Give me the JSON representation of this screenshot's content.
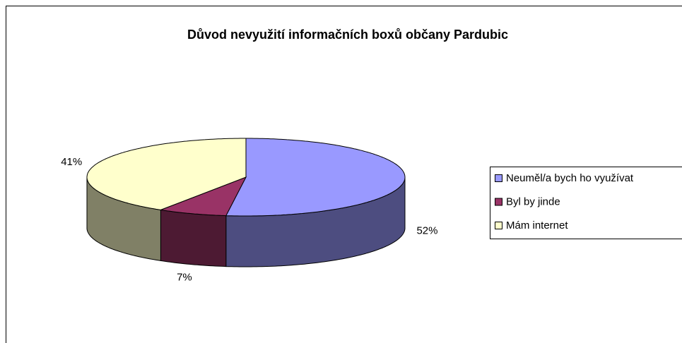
{
  "chart_data": {
    "type": "pie3d",
    "title": "Důvod nevyužití informačních boxů občany Pardubic",
    "categories": [
      "Neuměl/a bych ho využívat",
      "Byl by jinde",
      "Mám internet"
    ],
    "values": [
      52,
      7,
      41
    ],
    "value_labels": [
      "52%",
      "7%",
      "41%"
    ],
    "colors": [
      "#9999ff",
      "#993366",
      "#ffffcc"
    ],
    "legend": "right"
  }
}
